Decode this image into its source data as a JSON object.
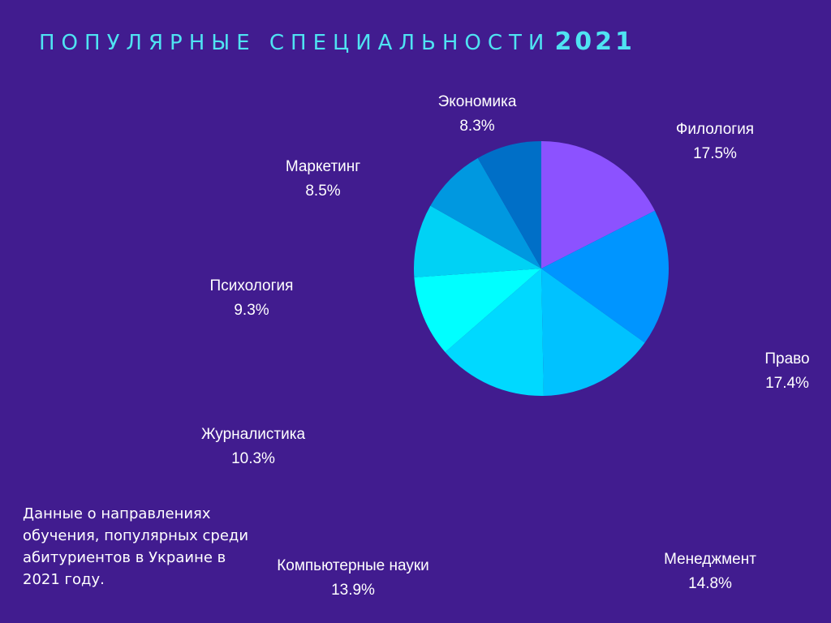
{
  "header": {
    "title": "ПОПУЛЯРНЫЕ СПЕЦИАЛЬНОСТИ",
    "year": "2021"
  },
  "note": "Данные о направлениях обучения, популярных среди абитуриентов в Украине в 2021 году.",
  "colors": {
    "background": "#411c8f",
    "title": "#4fe3f2",
    "text": "#ffffff"
  },
  "chart_data": {
    "type": "pie",
    "title": "ПОПУЛЯРНЫЕ СПЕЦИАЛЬНОСТИ 2021",
    "legend": "none",
    "slices": [
      {
        "label": "Филология",
        "value": 17.5,
        "display": "17.5%",
        "color": "#8c52ff"
      },
      {
        "label": "Право",
        "value": 17.4,
        "display": "17.4%",
        "color": "#0095ff"
      },
      {
        "label": "Менеджмент",
        "value": 14.8,
        "display": "14.8%",
        "color": "#00c2ff"
      },
      {
        "label": "Компьютерные науки",
        "value": 13.9,
        "display": "13.9%",
        "color": "#00d9ff"
      },
      {
        "label": "Журналистика",
        "value": 10.3,
        "display": "10.3%",
        "color": "#00ffff"
      },
      {
        "label": "Психология",
        "value": 9.3,
        "display": "9.3%",
        "color": "#00d2f5"
      },
      {
        "label": "Маркетинг",
        "value": 8.5,
        "display": "8.5%",
        "color": "#0098e0"
      },
      {
        "label": "Экономика",
        "value": 8.3,
        "display": "8.3%",
        "color": "#006fc7"
      }
    ]
  }
}
